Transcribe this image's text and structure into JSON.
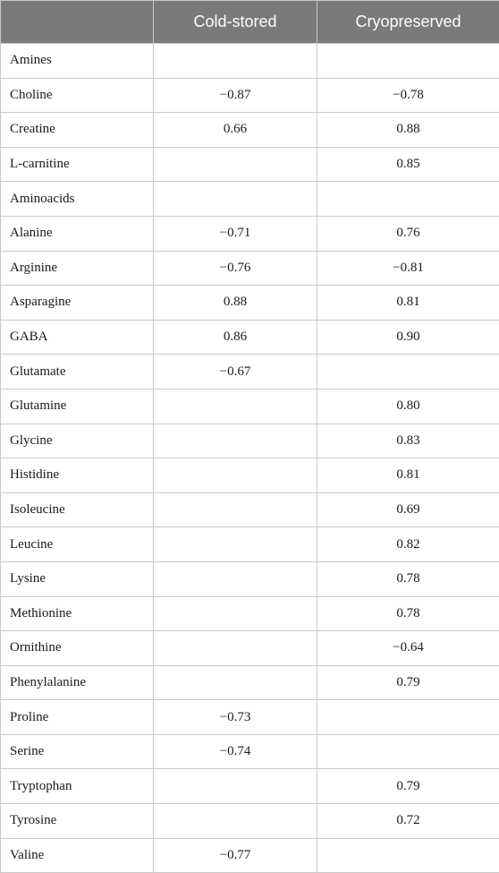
{
  "header": {
    "col0": "",
    "col1": "Cold-stored",
    "col2": "Cryopreserved"
  },
  "rows": [
    {
      "label": "Amines",
      "cold": "",
      "cryo": ""
    },
    {
      "label": "Choline",
      "cold": "−0.87",
      "cryo": "−0.78"
    },
    {
      "label": "Creatine",
      "cold": "0.66",
      "cryo": "0.88"
    },
    {
      "label": "L-carnitine",
      "cold": "",
      "cryo": "0.85"
    },
    {
      "label": "Aminoacids",
      "cold": "",
      "cryo": ""
    },
    {
      "label": "Alanine",
      "cold": "−0.71",
      "cryo": "0.76"
    },
    {
      "label": "Arginine",
      "cold": "−0.76",
      "cryo": "−0.81"
    },
    {
      "label": "Asparagine",
      "cold": "0.88",
      "cryo": "0.81"
    },
    {
      "label": "GABA",
      "cold": "0.86",
      "cryo": "0.90"
    },
    {
      "label": "Glutamate",
      "cold": "−0.67",
      "cryo": ""
    },
    {
      "label": "Glutamine",
      "cold": "",
      "cryo": "0.80"
    },
    {
      "label": "Glycine",
      "cold": "",
      "cryo": "0.83"
    },
    {
      "label": "Histidine",
      "cold": "",
      "cryo": "0.81"
    },
    {
      "label": "Isoleucine",
      "cold": "",
      "cryo": "0.69"
    },
    {
      "label": "Leucine",
      "cold": "",
      "cryo": "0.82"
    },
    {
      "label": "Lysine",
      "cold": "",
      "cryo": "0.78"
    },
    {
      "label": "Methionine",
      "cold": "",
      "cryo": "0.78"
    },
    {
      "label": "Ornithine",
      "cold": "",
      "cryo": "−0.64"
    },
    {
      "label": "Phenylalanine",
      "cold": "",
      "cryo": "0.79"
    },
    {
      "label": "Proline",
      "cold": "−0.73",
      "cryo": ""
    },
    {
      "label": "Serine",
      "cold": "−0.74",
      "cryo": ""
    },
    {
      "label": "Tryptophan",
      "cold": "",
      "cryo": "0.79"
    },
    {
      "label": "Tyrosine",
      "cold": "",
      "cryo": "0.72"
    },
    {
      "label": "Valine",
      "cold": "−0.77",
      "cryo": ""
    }
  ]
}
